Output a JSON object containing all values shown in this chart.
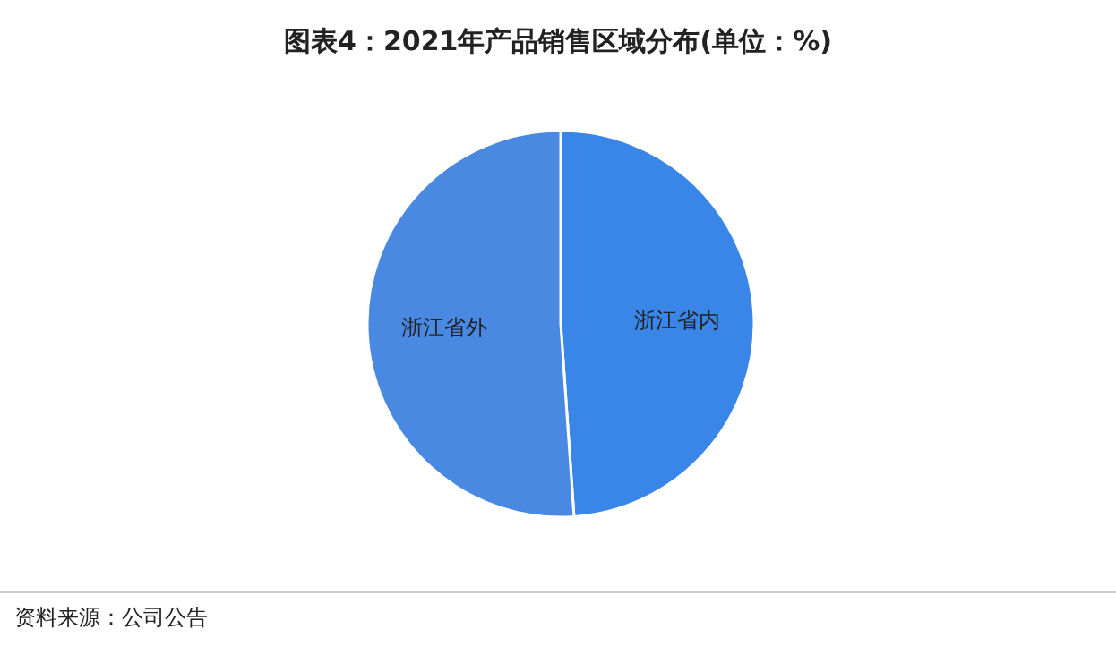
{
  "chart_data": {
    "type": "pie",
    "title": "图表4：2021年产品销售区域分布(单位：%)",
    "categories": [
      "浙江省内",
      "浙江省外"
    ],
    "values": [
      48.9,
      51.1
    ],
    "colors": [
      "#3a85e8",
      "#4a89e2"
    ],
    "annotations": [
      "资料来源：公司公告"
    ]
  }
}
